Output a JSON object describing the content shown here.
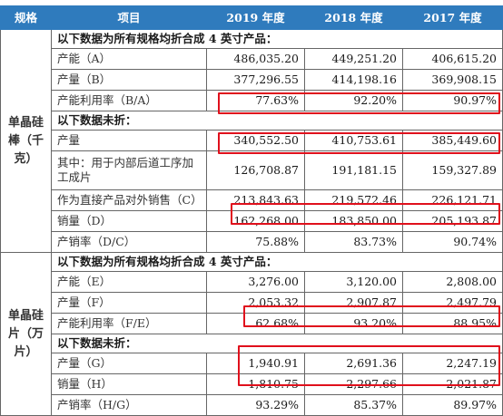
{
  "headers": {
    "spec": "规格",
    "item": "项目",
    "y2019": "2019 年度",
    "y2018": "2018 年度",
    "y2017": "2017 年度"
  },
  "sections": {
    "rod": {
      "spec": "单晶硅棒（千克）",
      "note1": "以下数据为所有规格均折合成 4 英寸产品：",
      "capacity": {
        "label": "产能（A）",
        "v2019": "486,035.20",
        "v2018": "449,251.20",
        "v2017": "406,615.20"
      },
      "output_b": {
        "label": "产量（B）",
        "v2019": "377,296.55",
        "v2018": "414,198.16",
        "v2017": "369,908.15"
      },
      "util": {
        "label": "产能利用率（B/A）",
        "v2019": "77.63%",
        "v2018": "92.20%",
        "v2017": "90.97%"
      },
      "note2": "以下数据未折：",
      "output": {
        "label": "产量",
        "v2019": "340,552.50",
        "v2018": "410,753.61",
        "v2017": "385,449.60"
      },
      "internal": {
        "label": "其中：用于内部后道工序加工成片",
        "v2019": "126,708.87",
        "v2018": "191,181.15",
        "v2017": "159,327.89"
      },
      "external_c": {
        "label": "作为直接产品对外销售（C）",
        "v2019": "213,843.63",
        "v2018": "219,572.46",
        "v2017": "226,121.71"
      },
      "sales_d": {
        "label": "销量（D）",
        "v2019": "162,268.00",
        "v2018": "183,850.00",
        "v2017": "205,193.87"
      },
      "ratio": {
        "label": "产销率（D/C）",
        "v2019": "75.88%",
        "v2018": "83.73%",
        "v2017": "90.74%"
      }
    },
    "wafer": {
      "spec": "单晶硅片（万片）",
      "note1": "以下数据为所有规格均折合成 4 英寸产品：",
      "capacity_e": {
        "label": "产能（E）",
        "v2019": "3,276.00",
        "v2018": "3,120.00",
        "v2017": "2,808.00"
      },
      "output_f": {
        "label": "产量（F）",
        "v2019": "2,053.32",
        "v2018": "2,907.87",
        "v2017": "2,497.79"
      },
      "util": {
        "label": "产能利用率（F/E）",
        "v2019": "62.68%",
        "v2018": "93.20%",
        "v2017": "88.95%"
      },
      "note2": "以下数据未折：",
      "output_g": {
        "label": "产量（G）",
        "v2019": "1,940.91",
        "v2018": "2,691.36",
        "v2017": "2,247.19"
      },
      "sales_h": {
        "label": "销量（H）",
        "v2019": "1,810.75",
        "v2018": "2,297.66",
        "v2017": "2,021.87"
      },
      "ratio": {
        "label": "产销率（H/G）",
        "v2019": "93.29%",
        "v2018": "85.37%",
        "v2017": "89.97%"
      }
    }
  },
  "highlight_color": "#e0101c",
  "header_color": "#2f7bbd"
}
